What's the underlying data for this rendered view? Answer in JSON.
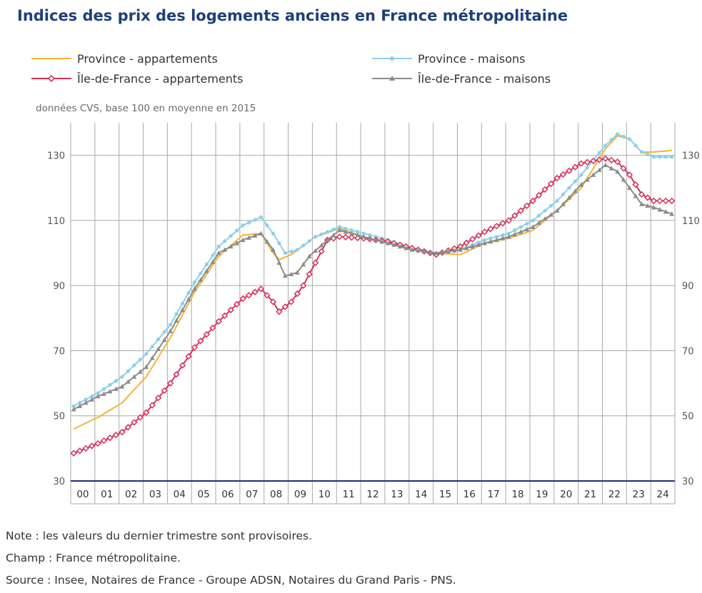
{
  "title": "Indices des prix des logements anciens en France métropolitaine",
  "subtitle": "données CVS, base 100 en moyenne en 2015",
  "legend": [
    {
      "name": "Province - appartements",
      "color": "#f5b335",
      "marker": "none"
    },
    {
      "name": "Province - maisons",
      "color": "#8dd0ea",
      "marker": "circle"
    },
    {
      "name": "Île-de-France - appartements",
      "color": "#d8315b",
      "marker": "diamond"
    },
    {
      "name": "Île-de-France - maisons",
      "color": "#8c8c8c",
      "marker": "triangle"
    }
  ],
  "notes": [
    "Note : les valeurs du dernier trimestre sont provisoires.",
    "Champ : France métropolitaine.",
    "Source : Insee, Notaires de France - Groupe ADSN, Notaires du Grand Paris - PNS."
  ],
  "chart_data": {
    "type": "line",
    "title": "Indices des prix des logements anciens en France métropolitaine",
    "subtitle": "données CVS, base 100 en moyenne en 2015",
    "xlabel": "",
    "ylabel": "",
    "x_start_year": 2000,
    "quarters": 100,
    "categories": [
      "00",
      "01",
      "02",
      "03",
      "04",
      "05",
      "06",
      "07",
      "08",
      "09",
      "10",
      "11",
      "12",
      "13",
      "14",
      "15",
      "16",
      "17",
      "18",
      "19",
      "20",
      "21",
      "22",
      "23",
      "24"
    ],
    "ylim": [
      30,
      140
    ],
    "yticks": [
      30,
      50,
      70,
      90,
      110,
      130
    ],
    "grid": true,
    "series": [
      {
        "name": "Province - appartements",
        "keypoints": [
          [
            0,
            46
          ],
          [
            4,
            49.5
          ],
          [
            8,
            54
          ],
          [
            12,
            62
          ],
          [
            16,
            74
          ],
          [
            20,
            88
          ],
          [
            24,
            99
          ],
          [
            28,
            105.5
          ],
          [
            31,
            106
          ],
          [
            33,
            100
          ],
          [
            34,
            98
          ],
          [
            36,
            99.5
          ],
          [
            40,
            105
          ],
          [
            44,
            107.5
          ],
          [
            48,
            105
          ],
          [
            52,
            103
          ],
          [
            56,
            101
          ],
          [
            60,
            100
          ],
          [
            64,
            99.5
          ],
          [
            68,
            103
          ],
          [
            72,
            104.5
          ],
          [
            76,
            107
          ],
          [
            80,
            113
          ],
          [
            84,
            120
          ],
          [
            86,
            126
          ],
          [
            88,
            132
          ],
          [
            90,
            136
          ],
          [
            92,
            135
          ],
          [
            94,
            131
          ],
          [
            96,
            131
          ],
          [
            99,
            131.5
          ]
        ]
      },
      {
        "name": "Province - maisons",
        "keypoints": [
          [
            0,
            53
          ],
          [
            4,
            57
          ],
          [
            8,
            62
          ],
          [
            12,
            69
          ],
          [
            16,
            78
          ],
          [
            20,
            91
          ],
          [
            24,
            102
          ],
          [
            28,
            108.5
          ],
          [
            31,
            111
          ],
          [
            33,
            106
          ],
          [
            35,
            100
          ],
          [
            37,
            101
          ],
          [
            40,
            105
          ],
          [
            44,
            108
          ],
          [
            48,
            106
          ],
          [
            52,
            104
          ],
          [
            56,
            101.5
          ],
          [
            60,
            100
          ],
          [
            64,
            101
          ],
          [
            68,
            104
          ],
          [
            72,
            106
          ],
          [
            76,
            110
          ],
          [
            80,
            116
          ],
          [
            84,
            124
          ],
          [
            88,
            133
          ],
          [
            90,
            136.5
          ],
          [
            92,
            135
          ],
          [
            94,
            131
          ],
          [
            96,
            129.5
          ],
          [
            99,
            129.5
          ]
        ]
      },
      {
        "name": "Île-de-France - appartements",
        "keypoints": [
          [
            0,
            38.5
          ],
          [
            4,
            41.5
          ],
          [
            8,
            45
          ],
          [
            12,
            51
          ],
          [
            16,
            60
          ],
          [
            20,
            71
          ],
          [
            24,
            79
          ],
          [
            28,
            86
          ],
          [
            31,
            89
          ],
          [
            33,
            85
          ],
          [
            34,
            82
          ],
          [
            36,
            85
          ],
          [
            38,
            90
          ],
          [
            40,
            97
          ],
          [
            42,
            104
          ],
          [
            44,
            105
          ],
          [
            48,
            104.5
          ],
          [
            52,
            103.5
          ],
          [
            56,
            101.5
          ],
          [
            60,
            99.5
          ],
          [
            64,
            102
          ],
          [
            68,
            106.5
          ],
          [
            72,
            110
          ],
          [
            76,
            116
          ],
          [
            80,
            123
          ],
          [
            84,
            127.5
          ],
          [
            88,
            129
          ],
          [
            90,
            128
          ],
          [
            92,
            124
          ],
          [
            94,
            118
          ],
          [
            96,
            116
          ],
          [
            99,
            116
          ]
        ]
      },
      {
        "name": "Île-de-France - maisons",
        "keypoints": [
          [
            0,
            52
          ],
          [
            4,
            56
          ],
          [
            8,
            59
          ],
          [
            12,
            65
          ],
          [
            16,
            76
          ],
          [
            20,
            89
          ],
          [
            24,
            100
          ],
          [
            28,
            104
          ],
          [
            31,
            106
          ],
          [
            33,
            101
          ],
          [
            35,
            93
          ],
          [
            37,
            94
          ],
          [
            39,
            99
          ],
          [
            42,
            104
          ],
          [
            44,
            107
          ],
          [
            48,
            105
          ],
          [
            52,
            103
          ],
          [
            56,
            101
          ],
          [
            60,
            100
          ],
          [
            64,
            101
          ],
          [
            68,
            103
          ],
          [
            72,
            105
          ],
          [
            76,
            108
          ],
          [
            80,
            113
          ],
          [
            84,
            121
          ],
          [
            88,
            127
          ],
          [
            90,
            125
          ],
          [
            92,
            120
          ],
          [
            94,
            115
          ],
          [
            96,
            114
          ],
          [
            99,
            112
          ]
        ]
      }
    ]
  }
}
